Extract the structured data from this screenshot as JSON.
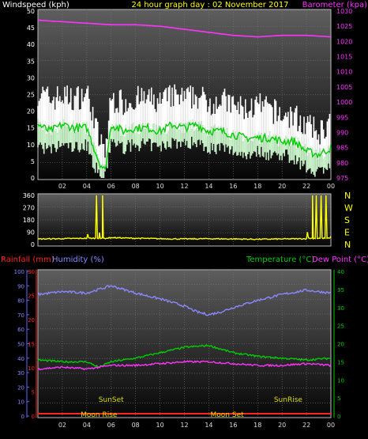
{
  "header": {
    "left_title": "Windspeed (kph)",
    "center_title": "24 hour graph day : 02 November 2017",
    "right_title": "Barometer (kpa)"
  },
  "colors": {
    "wind_max": "#ffffff",
    "wind_avg": "#c8f0c8",
    "wind_line": "#00cc00",
    "barometer": "#ff33ff",
    "direction": "#ffff00",
    "rain": "#ff2222",
    "humidity": "#8888ff",
    "temperature": "#00cc00",
    "dew_point": "#ff33ff",
    "sun_moon_text": "#dddd00"
  },
  "chart_data": [
    {
      "type": "line",
      "title": "Windspeed (kph)",
      "x_ticks": [
        "02",
        "04",
        "06",
        "08",
        "10",
        "12",
        "14",
        "16",
        "18",
        "20",
        "22",
        "00"
      ],
      "ylim_left": [
        0,
        50
      ],
      "yticks_left": [
        "0",
        "5",
        "10",
        "15",
        "20",
        "25",
        "30",
        "35",
        "40",
        "45",
        "50"
      ],
      "ylim_right": [
        975,
        1030
      ],
      "yticks_right": [
        "975",
        "980",
        "985",
        "990",
        "995",
        "1000",
        "1005",
        "1010",
        "1015",
        "1020",
        "1025",
        "1030"
      ],
      "ylabel_right": "Barometer (kpa)",
      "series": [
        {
          "name": "Windspeed (kph)",
          "hours": [
            0,
            1,
            2,
            3,
            4,
            4.5,
            5,
            5.5,
            6,
            7,
            8,
            9,
            10,
            11,
            12,
            13,
            14,
            15,
            16,
            17,
            18,
            19,
            20,
            21,
            22,
            23,
            24
          ],
          "gust": [
            24,
            22,
            23,
            22,
            24,
            18,
            10,
            6,
            22,
            21,
            22,
            22,
            21,
            23,
            22,
            23,
            21,
            22,
            20,
            19,
            20,
            19,
            17,
            17,
            14,
            12,
            15
          ],
          "avg": [
            16,
            14,
            16,
            15,
            15,
            10,
            5,
            2,
            16,
            14,
            15,
            15,
            14,
            16,
            15,
            16,
            14,
            14,
            13,
            12,
            12,
            12,
            11,
            11,
            8,
            7,
            9
          ],
          "low": [
            10,
            8,
            10,
            9,
            10,
            5,
            1,
            0,
            11,
            9,
            10,
            10,
            9,
            11,
            10,
            11,
            9,
            9,
            8,
            7,
            8,
            7,
            7,
            6,
            3,
            2,
            4
          ]
        },
        {
          "name": "Barometer (kpa)",
          "hours": [
            0,
            2,
            4,
            6,
            8,
            10,
            12,
            14,
            16,
            18,
            20,
            22,
            24
          ],
          "values": [
            1027,
            1026.5,
            1026,
            1025.5,
            1025.5,
            1025,
            1024,
            1023,
            1022,
            1021.5,
            1022,
            1022,
            1021.5
          ]
        }
      ]
    },
    {
      "type": "line",
      "title": "",
      "x_ticks": [
        "02",
        "04",
        "06",
        "08",
        "10",
        "12",
        "14",
        "16",
        "18",
        "20",
        "22",
        "00"
      ],
      "ylim": [
        0,
        360
      ],
      "yticks": [
        "0",
        "90",
        "180",
        "270",
        "360"
      ],
      "compass_labels": [
        "N",
        "W",
        "S",
        "E",
        "N"
      ],
      "series": [
        {
          "name": "Wind direction",
          "hours": [
            0,
            2,
            4,
            4.8,
            5,
            5.3,
            5.6,
            6,
            8,
            10,
            12,
            14,
            16,
            18,
            20,
            22,
            22.5,
            22.8,
            23.2,
            23.6,
            24
          ],
          "values": [
            40,
            42,
            45,
            360,
            50,
            360,
            45,
            50,
            45,
            42,
            40,
            42,
            40,
            38,
            40,
            42,
            360,
            360,
            360,
            360,
            60
          ]
        }
      ]
    },
    {
      "type": "line",
      "title": "",
      "legend": [
        "Rainfall (mm)",
        "Humidity (%)",
        "Temperature (°C)",
        "Dew Point (°C)"
      ],
      "x_ticks": [
        "02",
        "04",
        "06",
        "08",
        "10",
        "12",
        "14",
        "16",
        "18",
        "20",
        "22",
        "00"
      ],
      "ylim_humidity": [
        0,
        100
      ],
      "yticks_humidity": [
        "0",
        "10",
        "20",
        "30",
        "40",
        "50",
        "60",
        "70",
        "80",
        "90",
        "100"
      ],
      "ylim_rain": [
        0,
        30
      ],
      "yticks_rain": [
        "0",
        "5",
        "10",
        "15",
        "20",
        "25",
        "30"
      ],
      "ylim_temp": [
        0,
        40
      ],
      "yticks_temp": [
        "0",
        "5",
        "10",
        "15",
        "20",
        "25",
        "30",
        "35",
        "40"
      ],
      "series": [
        {
          "name": "Humidity (%)",
          "hours": [
            0,
            2,
            4,
            6,
            8,
            10,
            12,
            13,
            14,
            15,
            16,
            18,
            20,
            22,
            23,
            24
          ],
          "values": [
            84,
            86,
            85,
            90,
            85,
            81,
            76,
            72,
            70,
            72,
            75,
            80,
            84,
            87,
            86,
            85
          ]
        },
        {
          "name": "Temperature (°C)",
          "hours": [
            0,
            2,
            4,
            5,
            6,
            8,
            10,
            12,
            14,
            15,
            16,
            18,
            20,
            22,
            24
          ],
          "values": [
            15.5,
            15,
            15,
            13.5,
            15,
            16,
            17.5,
            19,
            19.5,
            18.5,
            17.5,
            16.5,
            16,
            15.5,
            16
          ]
        },
        {
          "name": "Dew Point (°C)",
          "hours": [
            0,
            2,
            4,
            6,
            8,
            10,
            12,
            14,
            16,
            18,
            20,
            22,
            24
          ],
          "values": [
            13,
            13.5,
            13,
            14,
            14,
            14.5,
            15,
            15,
            14.5,
            14,
            14,
            14.5,
            14
          ]
        },
        {
          "name": "Rainfall (mm)",
          "hours": [
            0,
            24
          ],
          "values": [
            0.5,
            0.5
          ]
        }
      ],
      "annotations": {
        "sunset": "SunSet",
        "sunrise": "SunRise",
        "moonrise": "Moon Rise",
        "moonset": "Moon Set",
        "sunset_hour": 6,
        "sunrise_hour": 20.5,
        "moonrise_hour": 5,
        "moonset_hour": 15.5
      }
    }
  ]
}
